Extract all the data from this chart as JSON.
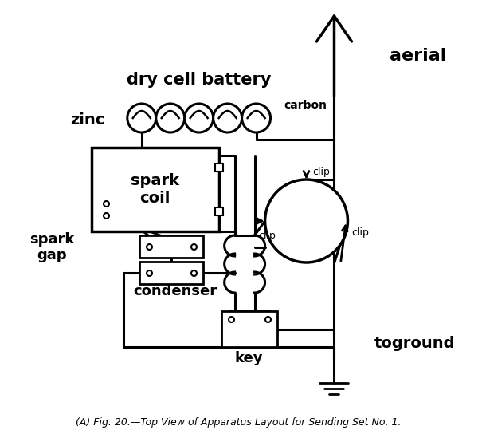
{
  "title": "(A) Fig. 20.—Top View of Apparatus Layout for Sending Set No. 1.",
  "bg_color": "#ffffff",
  "text_color": "#000000",
  "line_color": "#000000",
  "labels": {
    "dry_cell_battery": "dry cell battery",
    "zinc": "zinc",
    "carbon": "carbon",
    "aerial": "aerial",
    "spark_coil": "spark\ncoil",
    "spark_gap": "spark\ngap",
    "condenser": "condenser",
    "key": "key",
    "clip_top": "clip",
    "clip_left": "clip",
    "clip_bot": "clip",
    "toground": "toground"
  }
}
